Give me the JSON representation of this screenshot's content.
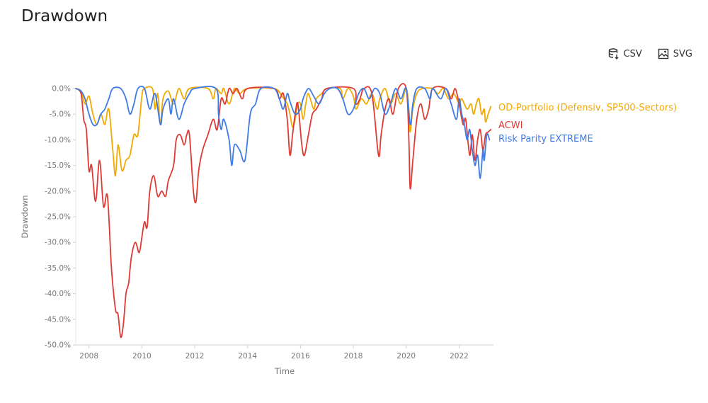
{
  "page": {
    "title": "Drawdown",
    "toolbar": {
      "csv_label": "CSV",
      "svg_label": "SVG",
      "csv_icon": "database-download-icon",
      "svg_icon": "image-icon"
    }
  },
  "chart_data": {
    "type": "line",
    "title": "Drawdown",
    "xlabel": "Time",
    "ylabel": "Drawdown",
    "xlim": [
      2007.5,
      2023.3
    ],
    "ylim": [
      -50,
      0
    ],
    "x_ticks": [
      2008,
      2010,
      2012,
      2014,
      2016,
      2018,
      2020,
      2022
    ],
    "y_ticks": [
      0,
      -5,
      -10,
      -15,
      -20,
      -25,
      -30,
      -35,
      -40,
      -45,
      -50
    ],
    "y_tick_labels": [
      "0.0%",
      "-5.0%",
      "-10.0%",
      "-15.0%",
      "-20.0%",
      "-25.0%",
      "-30.0%",
      "-35.0%",
      "-40.0%",
      "-45.0%",
      "-50.0%"
    ],
    "grid": false,
    "legend": "end-labels",
    "series": [
      {
        "name": "OD-Portfolio (Defensiv, SP500-Sectors)",
        "color": "#F2A900",
        "points": [
          [
            2007.5,
            0
          ],
          [
            2007.7,
            -0.5
          ],
          [
            2007.85,
            -3
          ],
          [
            2008.0,
            -1.5
          ],
          [
            2008.15,
            -5
          ],
          [
            2008.3,
            -7
          ],
          [
            2008.45,
            -5
          ],
          [
            2008.6,
            -7
          ],
          [
            2008.75,
            -4
          ],
          [
            2008.9,
            -12
          ],
          [
            2009.0,
            -17
          ],
          [
            2009.1,
            -11
          ],
          [
            2009.25,
            -16
          ],
          [
            2009.4,
            -14
          ],
          [
            2009.55,
            -13
          ],
          [
            2009.7,
            -9
          ],
          [
            2009.85,
            -9
          ],
          [
            2010.0,
            -1.5
          ],
          [
            2010.1,
            0
          ],
          [
            2010.4,
            0
          ],
          [
            2010.5,
            -4
          ],
          [
            2010.6,
            -1
          ],
          [
            2010.7,
            -7
          ],
          [
            2010.8,
            -2
          ],
          [
            2011.0,
            -0.5
          ],
          [
            2011.2,
            -3
          ],
          [
            2011.4,
            0
          ],
          [
            2011.6,
            -2
          ],
          [
            2011.8,
            0
          ],
          [
            2012.5,
            0
          ],
          [
            2012.7,
            -2
          ],
          [
            2012.8,
            0
          ],
          [
            2013.0,
            -1
          ],
          [
            2013.1,
            0
          ],
          [
            2013.3,
            -3
          ],
          [
            2013.5,
            0
          ],
          [
            2013.7,
            -1
          ],
          [
            2014.0,
            0
          ],
          [
            2015.0,
            0
          ],
          [
            2015.3,
            -1.5
          ],
          [
            2015.5,
            -3
          ],
          [
            2015.6,
            -5
          ],
          [
            2015.7,
            -7.5
          ],
          [
            2015.8,
            -6
          ],
          [
            2015.9,
            -3
          ],
          [
            2016.0,
            -3
          ],
          [
            2016.1,
            -6
          ],
          [
            2016.2,
            -3
          ],
          [
            2016.3,
            -1
          ],
          [
            2016.5,
            -4
          ],
          [
            2016.6,
            -2
          ],
          [
            2016.8,
            -1
          ],
          [
            2017.0,
            0
          ],
          [
            2017.5,
            0
          ],
          [
            2017.6,
            -2
          ],
          [
            2017.8,
            0
          ],
          [
            2018.0,
            -1.5
          ],
          [
            2018.1,
            -4
          ],
          [
            2018.3,
            -2
          ],
          [
            2018.5,
            -3
          ],
          [
            2018.7,
            -1
          ],
          [
            2018.9,
            -4
          ],
          [
            2019.0,
            -2
          ],
          [
            2019.2,
            0
          ],
          [
            2019.4,
            -3
          ],
          [
            2019.6,
            -1
          ],
          [
            2019.8,
            -3
          ],
          [
            2020.0,
            0
          ],
          [
            2020.1,
            -4
          ],
          [
            2020.15,
            -8.5
          ],
          [
            2020.25,
            -4
          ],
          [
            2020.4,
            -1
          ],
          [
            2020.6,
            0
          ],
          [
            2021.0,
            0
          ],
          [
            2021.2,
            -1
          ],
          [
            2021.4,
            0
          ],
          [
            2021.6,
            -2
          ],
          [
            2021.8,
            -1
          ],
          [
            2022.0,
            -3
          ],
          [
            2022.1,
            -2
          ],
          [
            2022.3,
            -4
          ],
          [
            2022.45,
            -3
          ],
          [
            2022.55,
            -5
          ],
          [
            2022.65,
            -3
          ],
          [
            2022.75,
            -2
          ],
          [
            2022.85,
            -5
          ],
          [
            2022.95,
            -4
          ],
          [
            2023.0,
            -6.5
          ],
          [
            2023.1,
            -5
          ],
          [
            2023.2,
            -3.5
          ]
        ]
      },
      {
        "name": "ACWI",
        "color": "#E03A34",
        "points": [
          [
            2007.5,
            0
          ],
          [
            2007.7,
            -1
          ],
          [
            2007.8,
            -6
          ],
          [
            2007.9,
            -8
          ],
          [
            2008.0,
            -16
          ],
          [
            2008.1,
            -15
          ],
          [
            2008.25,
            -22
          ],
          [
            2008.4,
            -14
          ],
          [
            2008.55,
            -23
          ],
          [
            2008.7,
            -21
          ],
          [
            2008.85,
            -35
          ],
          [
            2009.0,
            -43
          ],
          [
            2009.1,
            -44
          ],
          [
            2009.2,
            -48.5
          ],
          [
            2009.3,
            -46
          ],
          [
            2009.4,
            -40
          ],
          [
            2009.5,
            -38
          ],
          [
            2009.6,
            -33
          ],
          [
            2009.75,
            -30
          ],
          [
            2009.9,
            -32
          ],
          [
            2010.0,
            -29
          ],
          [
            2010.1,
            -26
          ],
          [
            2010.2,
            -27
          ],
          [
            2010.3,
            -20
          ],
          [
            2010.45,
            -17
          ],
          [
            2010.6,
            -21
          ],
          [
            2010.75,
            -20
          ],
          [
            2010.9,
            -21
          ],
          [
            2011.0,
            -18
          ],
          [
            2011.2,
            -15
          ],
          [
            2011.3,
            -10
          ],
          [
            2011.45,
            -9
          ],
          [
            2011.6,
            -11
          ],
          [
            2011.7,
            -9
          ],
          [
            2011.8,
            -9
          ],
          [
            2011.95,
            -20
          ],
          [
            2012.05,
            -22
          ],
          [
            2012.15,
            -16
          ],
          [
            2012.3,
            -12
          ],
          [
            2012.5,
            -9
          ],
          [
            2012.7,
            -6
          ],
          [
            2012.85,
            -8
          ],
          [
            2013.0,
            -2
          ],
          [
            2013.15,
            -3
          ],
          [
            2013.3,
            0
          ],
          [
            2013.45,
            -1
          ],
          [
            2013.6,
            0
          ],
          [
            2013.8,
            -2
          ],
          [
            2014.0,
            0
          ],
          [
            2015.0,
            0
          ],
          [
            2015.2,
            -2
          ],
          [
            2015.35,
            -1
          ],
          [
            2015.5,
            -6
          ],
          [
            2015.6,
            -13
          ],
          [
            2015.7,
            -9
          ],
          [
            2015.8,
            -5
          ],
          [
            2015.9,
            -3
          ],
          [
            2016.05,
            -11
          ],
          [
            2016.15,
            -13
          ],
          [
            2016.3,
            -9
          ],
          [
            2016.45,
            -5
          ],
          [
            2016.6,
            -4
          ],
          [
            2016.8,
            -2
          ],
          [
            2017.0,
            0
          ],
          [
            2018.0,
            0
          ],
          [
            2018.1,
            -3
          ],
          [
            2018.25,
            -2
          ],
          [
            2018.4,
            0
          ],
          [
            2018.7,
            -1
          ],
          [
            2018.95,
            -13
          ],
          [
            2019.05,
            -9
          ],
          [
            2019.2,
            -4
          ],
          [
            2019.35,
            -2
          ],
          [
            2019.5,
            -5
          ],
          [
            2019.7,
            0
          ],
          [
            2020.0,
            0
          ],
          [
            2020.1,
            -10
          ],
          [
            2020.15,
            -19.5
          ],
          [
            2020.25,
            -14
          ],
          [
            2020.4,
            -6
          ],
          [
            2020.55,
            -3
          ],
          [
            2020.7,
            -6
          ],
          [
            2020.85,
            -4
          ],
          [
            2021.0,
            0
          ],
          [
            2021.5,
            0
          ],
          [
            2021.7,
            -2
          ],
          [
            2021.85,
            0
          ],
          [
            2022.0,
            -3
          ],
          [
            2022.15,
            -7
          ],
          [
            2022.25,
            -6
          ],
          [
            2022.4,
            -13
          ],
          [
            2022.5,
            -9
          ],
          [
            2022.6,
            -14
          ],
          [
            2022.7,
            -10
          ],
          [
            2022.8,
            -8
          ],
          [
            2022.9,
            -12
          ],
          [
            2023.0,
            -9
          ],
          [
            2023.1,
            -8.5
          ],
          [
            2023.2,
            -8
          ]
        ]
      },
      {
        "name": "Risk Parity EXTREME",
        "color": "#3E7BE6",
        "points": [
          [
            2007.5,
            0
          ],
          [
            2007.7,
            -0.5
          ],
          [
            2007.85,
            -2
          ],
          [
            2008.0,
            -5
          ],
          [
            2008.15,
            -7
          ],
          [
            2008.3,
            -7
          ],
          [
            2008.45,
            -5
          ],
          [
            2008.6,
            -4
          ],
          [
            2008.75,
            -2
          ],
          [
            2008.9,
            0
          ],
          [
            2009.2,
            0
          ],
          [
            2009.4,
            -2
          ],
          [
            2009.55,
            -5
          ],
          [
            2009.7,
            -3
          ],
          [
            2009.85,
            0
          ],
          [
            2010.1,
            0
          ],
          [
            2010.3,
            -4
          ],
          [
            2010.5,
            -1
          ],
          [
            2010.7,
            -7
          ],
          [
            2010.8,
            -4
          ],
          [
            2011.0,
            -2
          ],
          [
            2011.1,
            -5
          ],
          [
            2011.2,
            -2
          ],
          [
            2011.4,
            -6
          ],
          [
            2011.6,
            -3
          ],
          [
            2011.8,
            -1
          ],
          [
            2012.0,
            0
          ],
          [
            2012.8,
            0
          ],
          [
            2012.9,
            -5
          ],
          [
            2013.0,
            -8
          ],
          [
            2013.1,
            -6
          ],
          [
            2013.3,
            -10
          ],
          [
            2013.4,
            -15
          ],
          [
            2013.5,
            -11
          ],
          [
            2013.7,
            -12
          ],
          [
            2013.9,
            -14
          ],
          [
            2014.1,
            -5
          ],
          [
            2014.3,
            -3
          ],
          [
            2014.5,
            0
          ],
          [
            2015.0,
            0
          ],
          [
            2015.2,
            -2
          ],
          [
            2015.35,
            -4
          ],
          [
            2015.5,
            -1
          ],
          [
            2015.6,
            -2.5
          ],
          [
            2015.8,
            -5
          ],
          [
            2016.0,
            -4
          ],
          [
            2016.1,
            -2
          ],
          [
            2016.3,
            0
          ],
          [
            2016.5,
            -1.5
          ],
          [
            2016.7,
            -3
          ],
          [
            2016.9,
            -1
          ],
          [
            2017.1,
            0
          ],
          [
            2017.4,
            0
          ],
          [
            2017.6,
            -2
          ],
          [
            2017.8,
            -5
          ],
          [
            2018.0,
            -4
          ],
          [
            2018.2,
            -1
          ],
          [
            2018.4,
            0
          ],
          [
            2018.6,
            -2
          ],
          [
            2018.8,
            0
          ],
          [
            2019.0,
            -1
          ],
          [
            2019.2,
            -5
          ],
          [
            2019.4,
            -3
          ],
          [
            2019.6,
            0
          ],
          [
            2019.8,
            -2
          ],
          [
            2020.0,
            0
          ],
          [
            2020.15,
            -7
          ],
          [
            2020.25,
            -3
          ],
          [
            2020.4,
            0
          ],
          [
            2020.7,
            0
          ],
          [
            2020.9,
            -2
          ],
          [
            2021.0,
            0
          ],
          [
            2021.3,
            -2
          ],
          [
            2021.5,
            0
          ],
          [
            2021.7,
            -3
          ],
          [
            2021.9,
            -6
          ],
          [
            2022.0,
            -2
          ],
          [
            2022.1,
            -5
          ],
          [
            2022.2,
            -7
          ],
          [
            2022.3,
            -10
          ],
          [
            2022.4,
            -8
          ],
          [
            2022.5,
            -12
          ],
          [
            2022.6,
            -15
          ],
          [
            2022.7,
            -13
          ],
          [
            2022.8,
            -17.5
          ],
          [
            2022.9,
            -12
          ],
          [
            2022.95,
            -14
          ],
          [
            2023.05,
            -9
          ],
          [
            2023.15,
            -10
          ]
        ]
      }
    ]
  }
}
